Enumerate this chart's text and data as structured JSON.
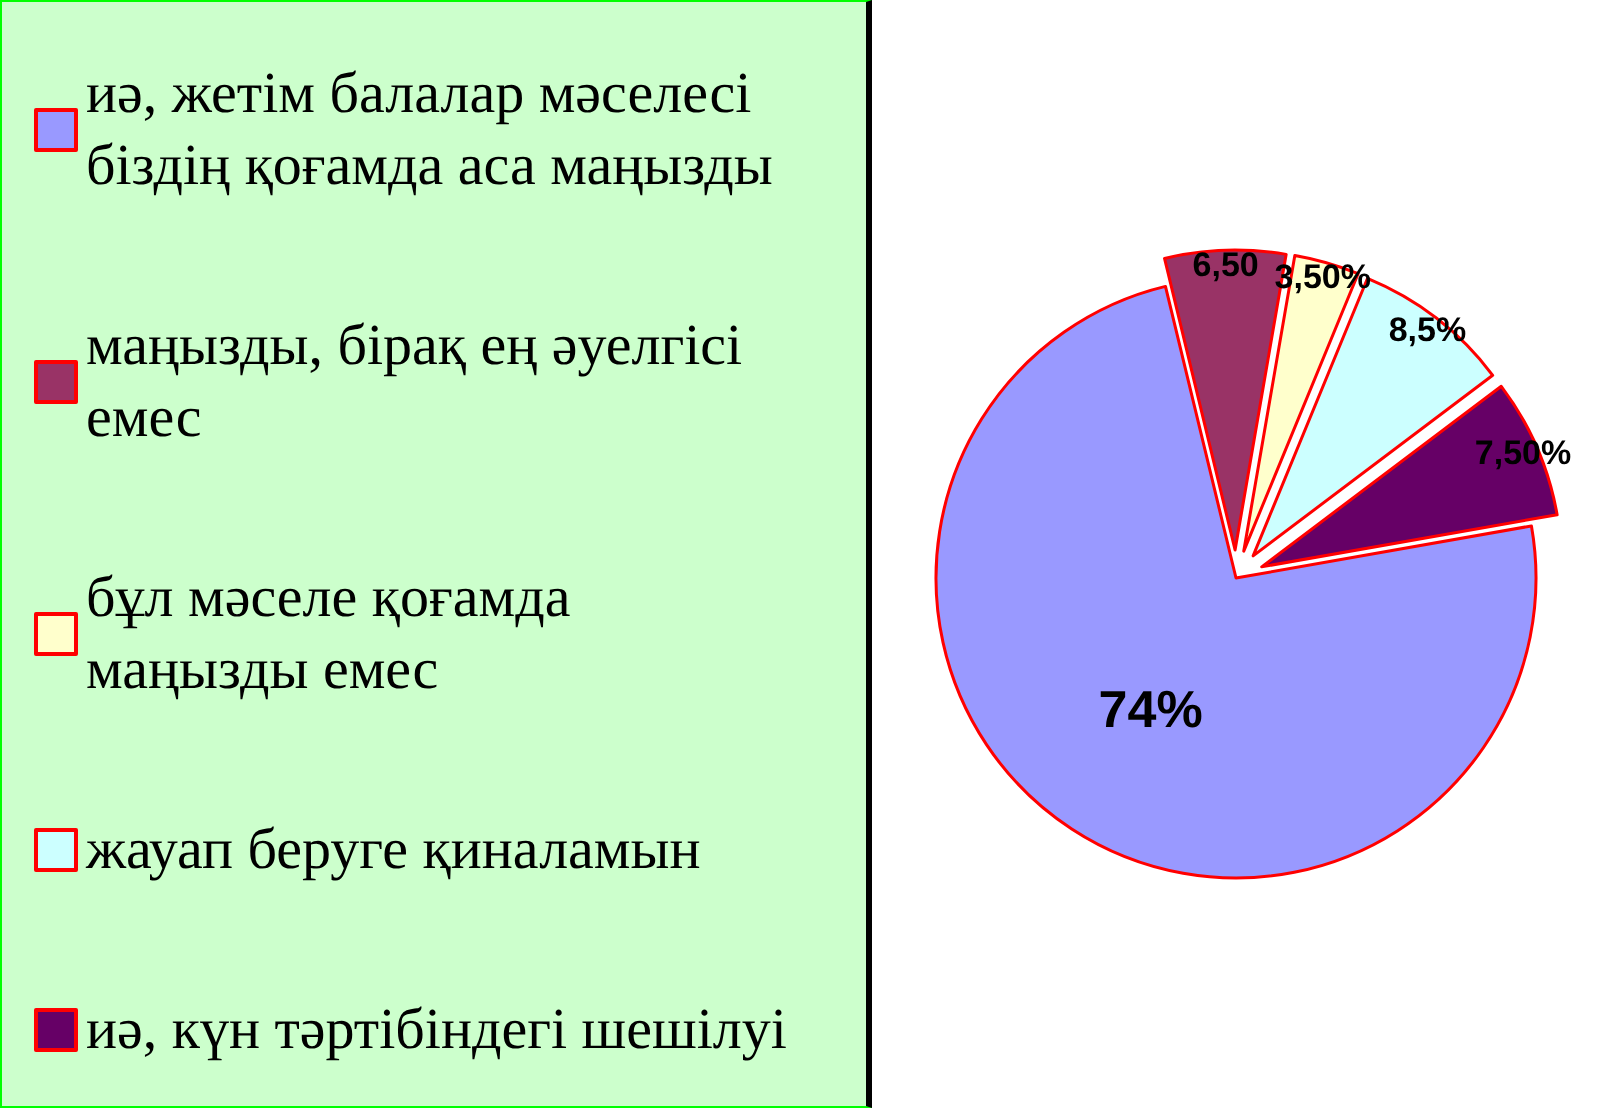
{
  "chart_data": {
    "type": "pie",
    "categories": [
      "иә, жетім балалар мәселесі біздің қоғамда аса маңызды",
      "маңызды, бірақ ең әуелгісі емес",
      "бұл мәселе қоғамда маңызды емес",
      "жауап беруге қиналамын",
      "иә, күн тәртібіндегі шешілуі"
    ],
    "values": [
      74,
      6.5,
      3.5,
      8.5,
      7.5
    ],
    "colors": [
      "#9999ff",
      "#993366",
      "#ffffcc",
      "#ccffff",
      "#660066"
    ],
    "value_labels": [
      "74%",
      "6,50",
      "3,50%",
      "8,5%",
      "7,50%"
    ],
    "legend": "left"
  }
}
